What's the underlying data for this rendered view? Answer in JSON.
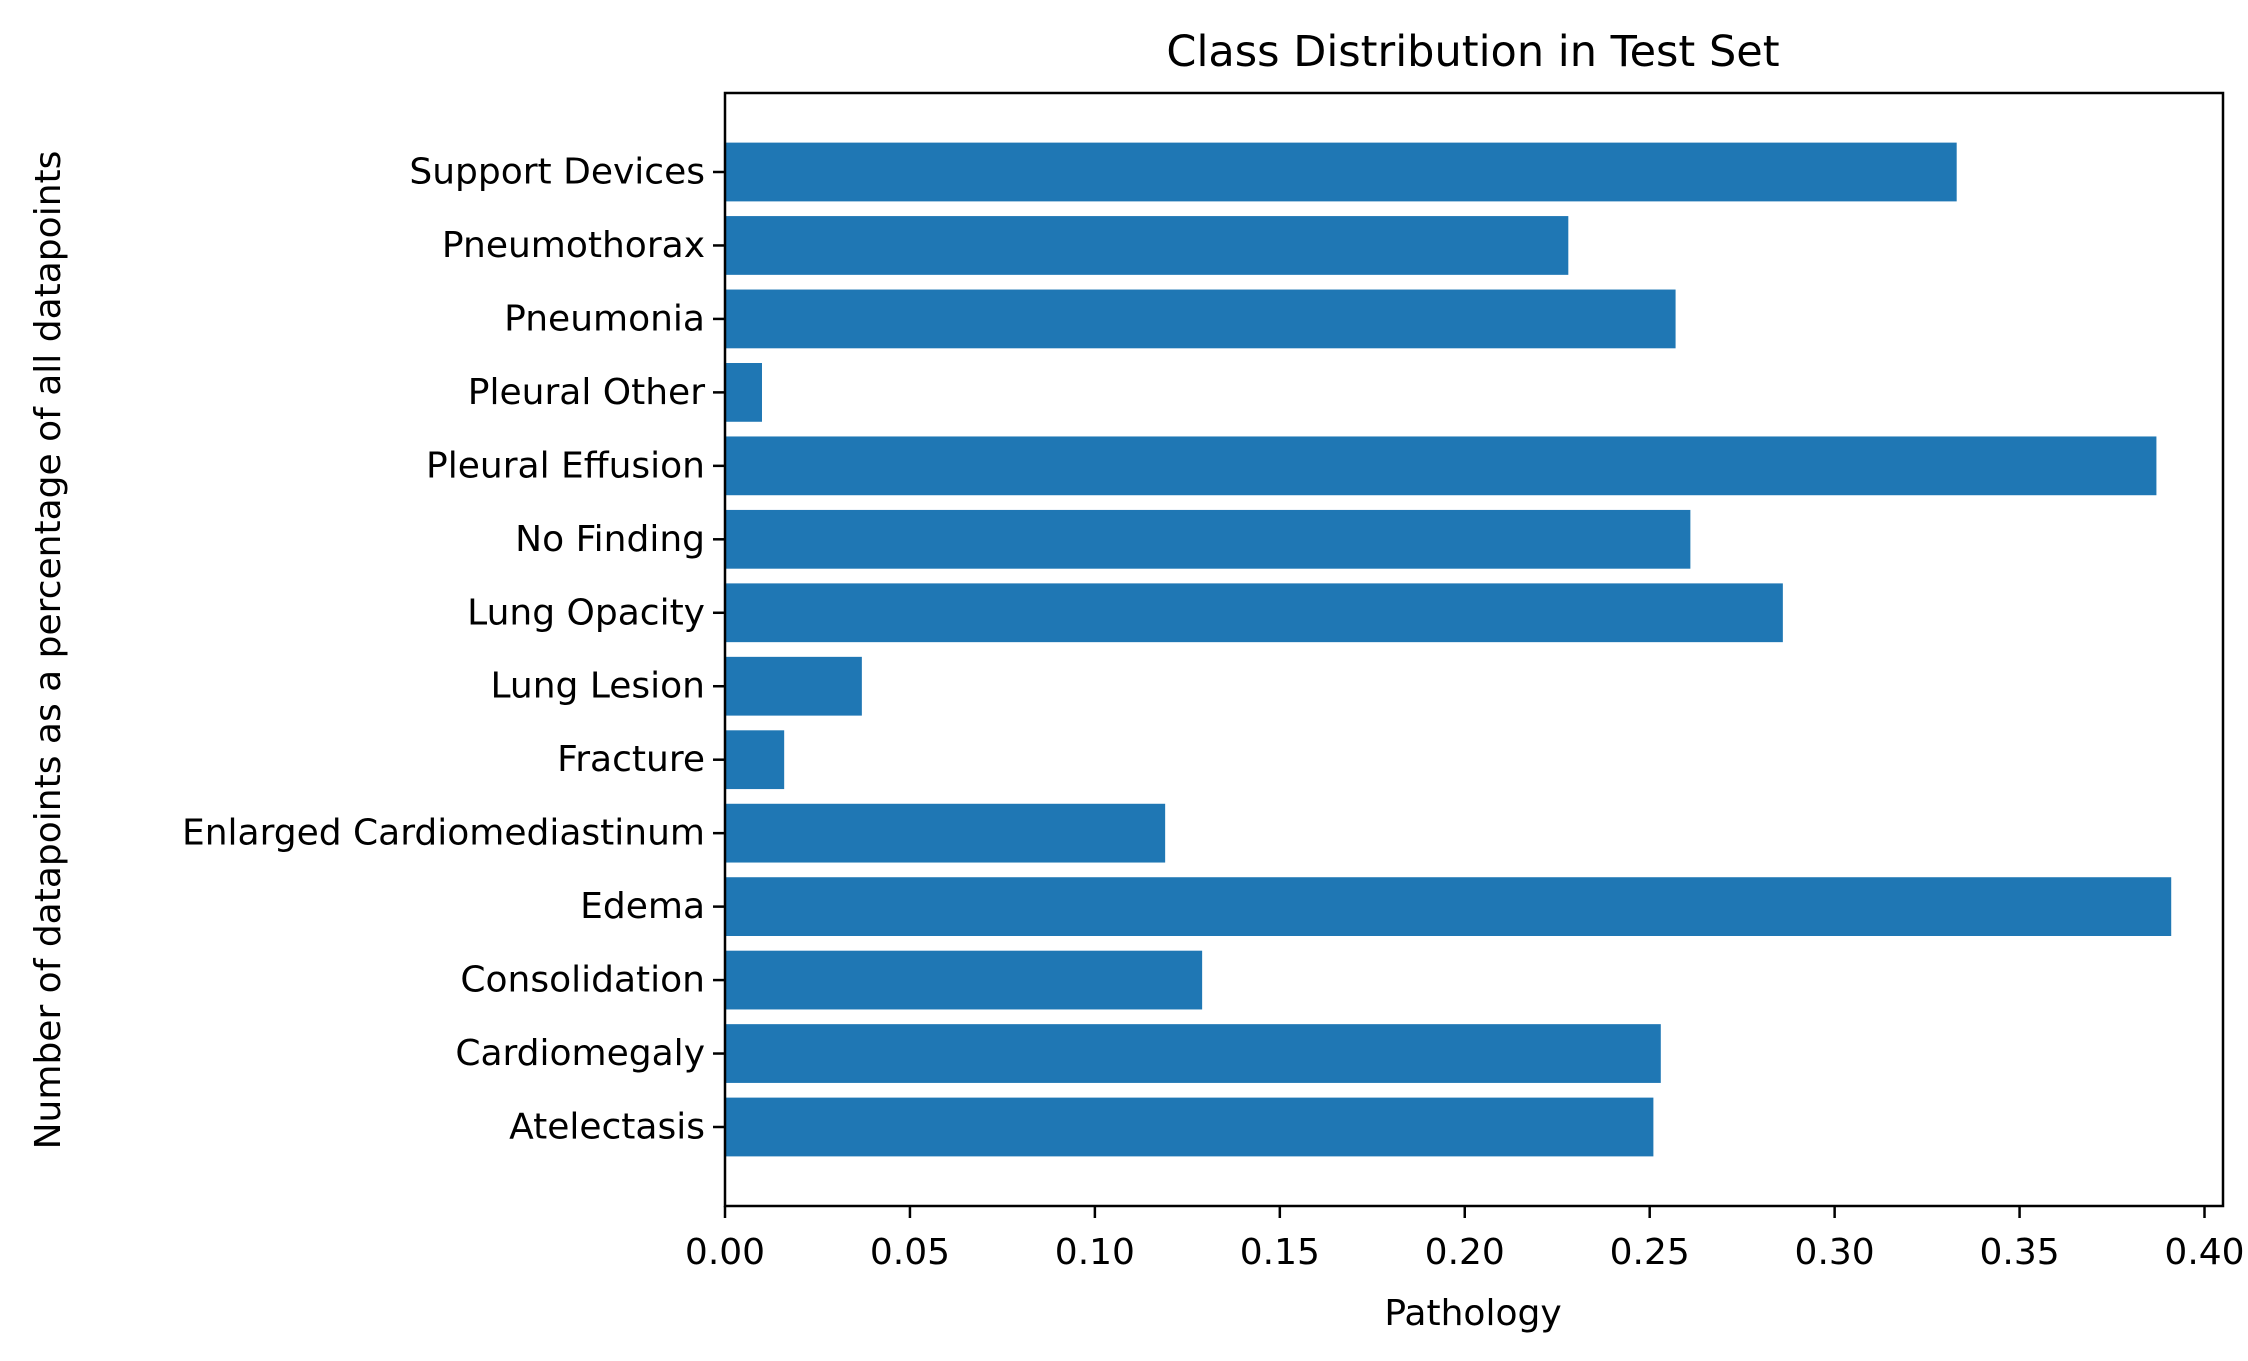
{
  "chart_data": {
    "type": "bar",
    "orientation": "horizontal",
    "title": "Class Distribution in Test Set",
    "xlabel": "Pathology",
    "ylabel": "Number of datapoints as a percentage of all datapoints",
    "xlim": [
      0,
      0.405
    ],
    "xticks": [
      "0.00",
      "0.05",
      "0.10",
      "0.15",
      "0.20",
      "0.25",
      "0.30",
      "0.35",
      "0.40"
    ],
    "bar_color": "#1f77b4",
    "grid": false,
    "categories": [
      "Atelectasis",
      "Cardiomegaly",
      "Consolidation",
      "Edema",
      "Enlarged Cardiomediastinum",
      "Fracture",
      "Lung Lesion",
      "Lung Opacity",
      "No Finding",
      "Pleural Effusion",
      "Pleural Other",
      "Pneumonia",
      "Pneumothorax",
      "Support Devices"
    ],
    "values": [
      0.251,
      0.253,
      0.129,
      0.391,
      0.119,
      0.016,
      0.037,
      0.286,
      0.261,
      0.387,
      0.01,
      0.257,
      0.228,
      0.333
    ]
  }
}
